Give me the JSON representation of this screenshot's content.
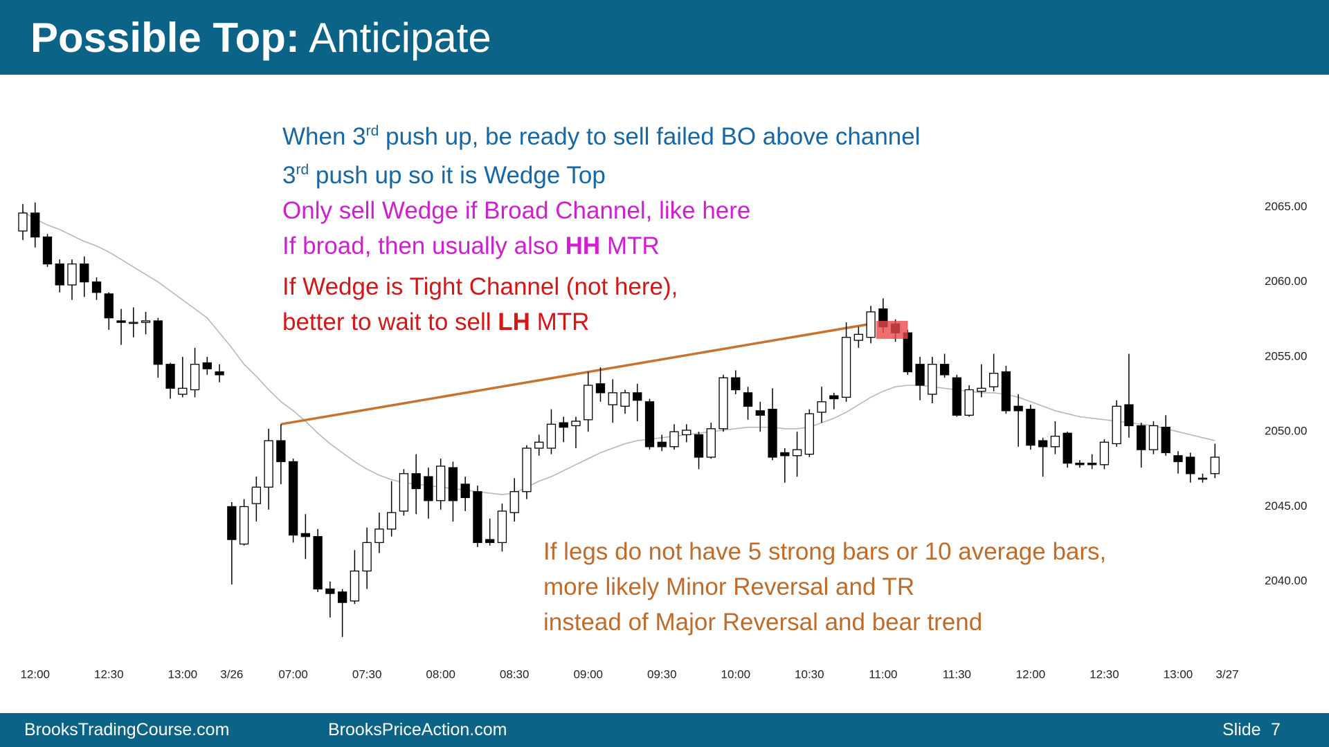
{
  "header": {
    "title_bold": "Possible Top:",
    "title_rest": "Anticipate"
  },
  "footer": {
    "left": "BrooksTradingCourse.com",
    "middle": "BrooksPriceAction.com",
    "slide_label": "Slide",
    "slide_number": 7
  },
  "chart_data": {
    "type": "candlestick",
    "categories": [
      null,
      "12:00",
      null,
      null,
      null,
      null,
      null,
      "12:30",
      null,
      null,
      null,
      null,
      null,
      "13:00",
      null,
      null,
      null,
      "3/26",
      null,
      null,
      null,
      null,
      "07:00",
      null,
      null,
      null,
      null,
      null,
      "07:30",
      null,
      null,
      null,
      null,
      null,
      "08:00",
      null,
      null,
      null,
      null,
      null,
      "08:30",
      null,
      null,
      null,
      null,
      null,
      "09:00",
      null,
      null,
      null,
      null,
      null,
      "09:30",
      null,
      null,
      null,
      null,
      null,
      "10:00",
      null,
      null,
      null,
      null,
      null,
      "10:30",
      null,
      null,
      null,
      null,
      null,
      "11:00",
      null,
      null,
      null,
      null,
      null,
      "11:30",
      null,
      null,
      null,
      null,
      null,
      "12:00",
      null,
      null,
      null,
      null,
      null,
      "12:30",
      null,
      null,
      null,
      null,
      null,
      "13:00",
      null,
      null,
      null,
      "3/27"
    ],
    "open": [
      2063.4,
      2064.6,
      2063,
      2061.2,
      2059.8,
      2061.2,
      2060,
      2059.2,
      2057.4,
      2057.3,
      2057.3,
      2057.4,
      2054.5,
      2052.5,
      2052.8,
      2054.6,
      2054,
      2045,
      2042.5,
      2045.2,
      2046.3,
      2049.4,
      2048,
      2043.2,
      2043,
      2039.5,
      2039.3,
      2038.7,
      2040.7,
      2042.6,
      2043.5,
      2044.7,
      2047.2,
      2047,
      2045.4,
      2047.6,
      2046.5,
      2046,
      2042.8,
      2042.6,
      2044.6,
      2046,
      2048.9,
      2048.9,
      2050.6,
      2050.4,
      2050.8,
      2053.2,
      2051.8,
      2051.7,
      2052.6,
      2052,
      2049.3,
      2049,
      2049.8,
      2049.8,
      2048.3,
      2050.2,
      2053.6,
      2052.6,
      2051.4,
      2051.5,
      2048.6,
      2048.4,
      2048.5,
      2051.3,
      2052.4,
      2052.3,
      2056.1,
      2056.3,
      2058.2,
      2057.2,
      2056.6,
      2054.5,
      2052.5,
      2054.5,
      2053.6,
      2051.1,
      2052.7,
      2053,
      2054,
      2051.7,
      2051.5,
      2049.4,
      2049,
      2049.9,
      2047.9,
      2047.9,
      2047.8,
      2049.2,
      2051.8,
      2050.4,
      2048.8,
      2050.3,
      2048.4,
      2048.3,
      2046.9,
      2047.2,
      null
    ],
    "high": [
      2065.2,
      2065.3,
      2063.2,
      2061.5,
      2061.5,
      2061.7,
      2060.3,
      2059.3,
      2058.2,
      2058.3,
      2058,
      2057.6,
      2054.6,
      2055,
      2055.6,
      2055,
      2054.5,
      2045.3,
      2045.5,
      2047,
      2050.2,
      2050.5,
      2048.2,
      2044.5,
      2043.5,
      2040,
      2039.5,
      2042.1,
      2043.6,
      2044.6,
      2046.7,
      2047.5,
      2048.5,
      2047.6,
      2048.2,
      2048,
      2047,
      2046.4,
      2044.2,
      2045.2,
      2046.9,
      2049.1,
      2049.8,
      2051.5,
      2051,
      2051,
      2054,
      2054.3,
      2053.5,
      2052.8,
      2053.2,
      2052.2,
      2049.8,
      2050.5,
      2050.5,
      2050,
      2050.6,
      2053.8,
      2054.1,
      2053,
      2052,
      2052.9,
      2048.9,
      2050,
      2051.5,
      2053,
      2052.6,
      2057.3,
      2057,
      2058.4,
      2058.9,
      2057.5,
      2056.8,
      2055,
      2055,
      2055.2,
      2053.8,
      2053.1,
      2054.5,
      2055.2,
      2054.4,
      2052.5,
      2051.8,
      2049.6,
      2050.7,
      2050,
      2048.1,
      2048.5,
      2049.5,
      2052.1,
      2055.2,
      2050.6,
      2050.7,
      2051.1,
      2048.7,
      2048.6,
      2047.2,
      2049.2,
      null
    ],
    "low": [
      2062.8,
      2062.3,
      2061,
      2059.3,
      2058.8,
      2059,
      2058.8,
      2056.8,
      2055.8,
      2056.3,
      2056.5,
      2053.6,
      2052.2,
      2052.3,
      2052.3,
      2053.8,
      2053.3,
      2039.8,
      2042.4,
      2044,
      2044.8,
      2046.5,
      2042.6,
      2041.5,
      2039.3,
      2037.6,
      2036.3,
      2038.5,
      2039.5,
      2041.9,
      2043,
      2044.4,
      2044.5,
      2044.2,
      2044.8,
      2044,
      2044.7,
      2042.3,
      2042.4,
      2042,
      2044,
      2045.5,
      2048.4,
      2048.5,
      2049.3,
      2048.9,
      2050,
      2052,
      2050.6,
      2051.2,
      2050.7,
      2048.8,
      2048.7,
      2048.8,
      2049.3,
      2047.5,
      2048.2,
      2050,
      2052.5,
      2050.8,
      2050,
      2048.1,
      2046.6,
      2047,
      2048.3,
      2050.6,
      2051.5,
      2052,
      2055.6,
      2055.9,
      2056.6,
      2056,
      2053.8,
      2052.1,
      2051.9,
      2053.6,
      2051,
      2051,
      2052.3,
      2052.7,
      2051.2,
      2049,
      2048.8,
      2047,
      2048.5,
      2047.6,
      2047.6,
      2047.5,
      2047.5,
      2049,
      2049.6,
      2047.6,
      2048.5,
      2048.4,
      2047.2,
      2046.6,
      2046.6,
      2046.9,
      null
    ],
    "close": [
      2064.6,
      2063,
      2061.2,
      2059.8,
      2061.2,
      2060,
      2059.3,
      2057.6,
      2057.3,
      2057.3,
      2057.4,
      2054.5,
      2052.9,
      2052.9,
      2054.5,
      2054.2,
      2053.8,
      2042.8,
      2045,
      2046.3,
      2049.4,
      2048,
      2043.1,
      2043,
      2039.5,
      2039.2,
      2038.6,
      2040.7,
      2042.6,
      2043.5,
      2044.6,
      2047.2,
      2046.2,
      2045.4,
      2047.7,
      2045.4,
      2045.6,
      2042.6,
      2042.6,
      2044.7,
      2046,
      2048.9,
      2049.3,
      2050.5,
      2050.3,
      2050.7,
      2053.1,
      2052.6,
      2052.6,
      2052.6,
      2052.1,
      2049,
      2049,
      2050,
      2050.1,
      2048.3,
      2050.2,
      2053.6,
      2052.8,
      2051.7,
      2051.1,
      2048.3,
      2048.4,
      2048.8,
      2051.2,
      2052,
      2052.2,
      2056.3,
      2056.5,
      2058,
      2057,
      2056.6,
      2054,
      2053.1,
      2054.5,
      2053.8,
      2051.1,
      2052.8,
      2052.9,
      2053.9,
      2051.4,
      2051.4,
      2049.1,
      2049,
      2049.7,
      2047.9,
      2047.8,
      2047.8,
      2049.3,
      2051.7,
      2050.4,
      2048.8,
      2050.4,
      2048.6,
      2048,
      2047.2,
      2046.9,
      2048.3,
      null
    ],
    "moving_average": {
      "color": "#b8b8b8",
      "values": [
        2064.7,
        2064.2,
        2063.8,
        2063.5,
        2063.1,
        2062.7,
        2062.4,
        2062.0,
        2061.5,
        2061.0,
        2060.5,
        2060.0,
        2059.4,
        2058.8,
        2058.2,
        2057.6,
        2056.6,
        2055.6,
        2054.5,
        2053.7,
        2052.8,
        2052.0,
        2051.4,
        2050.7,
        2049.9,
        2049.2,
        2048.6,
        2048.0,
        2047.5,
        2047.1,
        2046.8,
        2046.6,
        2046.5,
        2046.4,
        2046.3,
        2046.2,
        2046.1,
        2046.0,
        2045.9,
        2045.8,
        2045.9,
        2046.3,
        2046.7,
        2047.0,
        2047.4,
        2047.8,
        2048.2,
        2048.6,
        2048.9,
        2049.2,
        2049.4,
        2049.5,
        2049.6,
        2049.7,
        2049.8,
        2049.9,
        2050.0,
        2050.1,
        2050.2,
        2050.3,
        2050.3,
        2050.3,
        2050.2,
        2050.2,
        2050.3,
        2050.6,
        2050.9,
        2051.3,
        2051.8,
        2052.3,
        2052.7,
        2053.0,
        2053.1,
        2053.1,
        2053.0,
        2052.9,
        2052.8,
        2052.7,
        2052.6,
        2052.6,
        2052.5,
        2052.3,
        2052.0,
        2051.7,
        2051.4,
        2051.2,
        2051.0,
        2050.9,
        2050.8,
        2050.7,
        2050.6,
        2050.5,
        2050.4,
        2050.2,
        2050.0,
        2049.8,
        2049.6,
        2049.4,
        null
      ]
    },
    "trendline": {
      "color": "#c8742f",
      "x": [
        21,
        69
      ],
      "y": [
        2050.5,
        2057.2
      ]
    },
    "highlight": {
      "color": "#e84a4a",
      "x": [
        70,
        71
      ],
      "y": [
        2056.2,
        2057.4
      ]
    },
    "ylim": [
      2035,
      2067
    ],
    "yticks": [
      {
        "value": 2065,
        "label": "2065.00"
      },
      {
        "value": 2060,
        "label": "2060.00"
      },
      {
        "value": 2055,
        "label": "2055.00"
      },
      {
        "value": 2050,
        "label": "2050.00"
      },
      {
        "value": 2045,
        "label": "2045.00"
      },
      {
        "value": 2040,
        "label": "2040.00"
      }
    ],
    "annotations": [
      {
        "color": "#1767a6",
        "lines": [
          [
            {
              "text": "When 3"
            },
            {
              "text": "rd",
              "sup": true
            },
            {
              "text": " push up, be ready to sell failed BO above channel"
            }
          ],
          [
            {
              "text": "3"
            },
            {
              "text": "rd",
              "sup": true
            },
            {
              "text": " push up so it is Wedge Top"
            }
          ]
        ]
      },
      {
        "color": "#d21ed2",
        "lines": [
          [
            {
              "text": "Only sell Wedge if Broad Channel, like here"
            }
          ],
          [
            {
              "text": "If broad, then usually also "
            },
            {
              "text": "HH",
              "bold": true
            },
            {
              "text": " MTR"
            }
          ]
        ]
      },
      {
        "color": "#d61515",
        "lines": [
          [
            {
              "text": "If Wedge is Tight Channel (not here),"
            }
          ],
          [
            {
              "text": "better to wait to sell "
            },
            {
              "text": "LH",
              "bold": true
            },
            {
              "text": " MTR"
            }
          ]
        ]
      },
      {
        "color": "#c06b29",
        "lines": [
          [
            {
              "text": "If legs do not have 5 strong bars or 10 average bars,"
            }
          ],
          [
            {
              "text": "more likely Minor Reversal and TR"
            }
          ],
          [
            {
              "text": "instead of Major Reversal and bear trend"
            }
          ]
        ]
      }
    ]
  }
}
